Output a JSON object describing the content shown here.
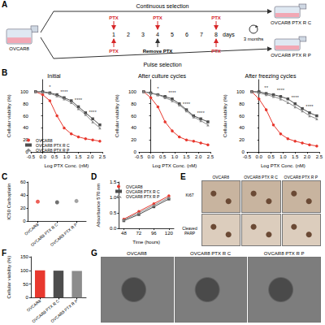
{
  "schematic": {
    "panel": "A",
    "source": "OVCAR8",
    "drug": "PTX",
    "continuous": "Continuous selection",
    "pulse": "Pulse selection",
    "days": [
      1,
      2,
      3,
      4,
      5,
      6,
      7,
      8
    ],
    "days_label": "days",
    "continuous_ptx_days": [
      1,
      4,
      8
    ],
    "pulse_ptx_days": [
      1,
      8
    ],
    "remove_day": 4,
    "remove": "Remove PTX",
    "duration": "3 months",
    "continuous_line": "OVCAR8 PTX R C",
    "pulse_line": "OVCAR8 PTX R P"
  },
  "chart_data": [
    {
      "panel": "B",
      "type": "line",
      "title": "Initial",
      "x_label": "Log PTX Conc. (nM)",
      "y_label": "Cellular viability (%)",
      "x": [
        -0.3,
        0,
        0.3,
        0.6,
        0.9,
        1.2,
        1.5,
        1.8,
        2.1,
        2.4
      ],
      "series": [
        {
          "name": "OVCAR8",
          "color": "#e8382e",
          "marker": "circle",
          "values": [
            100,
            95,
            85,
            60,
            40,
            30,
            25,
            22,
            20,
            18
          ]
        },
        {
          "name": "OVCAR8 PTX R C",
          "color": "#4d4d4d",
          "marker": "square",
          "values": [
            100,
            100,
            98,
            95,
            90,
            85,
            75,
            65,
            55,
            45
          ]
        },
        {
          "name": "OVCAR8 PTX R P",
          "color": "#8c8c8c",
          "marker": "triangle",
          "values": [
            100,
            99,
            97,
            93,
            88,
            82,
            72,
            62,
            50,
            40
          ]
        }
      ],
      "xlim": [
        -0.5,
        2.5
      ],
      "xticks": [
        -0.5,
        {
          "value": 0,
          "label": "0.0"
        },
        0.5,
        {
          "value": 1,
          "label": "1.0"
        },
        1.5,
        {
          "value": 2,
          "label": "2.0"
        },
        2.5
      ],
      "ylim": [
        0,
        120
      ],
      "yticks": [
        0,
        20,
        40,
        60,
        80,
        100
      ],
      "grid": false,
      "legend": "bottom left",
      "annotations": [
        {
          "x": 0.3,
          "y": 108,
          "text": "*"
        },
        {
          "x": 0.9,
          "y": 100,
          "text": "****"
        },
        {
          "x": 1.5,
          "y": 86,
          "text": "****"
        },
        {
          "x": 2.1,
          "y": 66,
          "text": "****"
        }
      ]
    },
    {
      "type": "line",
      "title": "After culture cycles",
      "x_label": "Log PTX Conc. (nM)",
      "y_label": "Cellular viability (%)",
      "x": [
        -0.3,
        0,
        0.3,
        0.6,
        0.9,
        1.2,
        1.5,
        1.8,
        2.1,
        2.4
      ],
      "series": [
        {
          "name": "OVCAR8",
          "color": "#e8382e",
          "marker": "circle",
          "values": [
            100,
            90,
            75,
            50,
            35,
            25,
            20,
            18,
            15,
            12
          ]
        },
        {
          "name": "OVCAR8 PTX R C",
          "color": "#4d4d4d",
          "marker": "square",
          "values": [
            100,
            98,
            95,
            92,
            88,
            80,
            70,
            60,
            55,
            50
          ]
        },
        {
          "name": "OVCAR8 PTX R P",
          "color": "#8c8c8c",
          "marker": "triangle",
          "values": [
            100,
            97,
            95,
            90,
            85,
            78,
            68,
            58,
            52,
            45
          ]
        }
      ],
      "xlim": [
        -0.5,
        2.5
      ],
      "xticks": [
        -0.5,
        {
          "value": 0,
          "label": "0.0"
        },
        0.5,
        {
          "value": 1,
          "label": "1.0"
        },
        1.5,
        {
          "value": 2,
          "label": "2.0"
        },
        2.5
      ],
      "ylim": [
        0,
        120
      ],
      "yticks": [
        0,
        20,
        40,
        60,
        80,
        100
      ],
      "grid": false,
      "annotations": [
        {
          "x": 0.3,
          "y": 105,
          "text": "*"
        },
        {
          "x": 0.9,
          "y": 98,
          "text": "****"
        },
        {
          "x": 1.5,
          "y": 80,
          "text": "****"
        },
        {
          "x": 2.1,
          "y": 65,
          "text": "****"
        }
      ]
    },
    {
      "type": "line",
      "title": "After freezing cycles",
      "x_label": "Log PTX Conc. (nM)",
      "y_label": "Cellular viability (%)",
      "x": [
        -0.3,
        0,
        0.3,
        0.6,
        0.9,
        1.2,
        1.5,
        1.8,
        2.1,
        2.4
      ],
      "series": [
        {
          "name": "OVCAR8",
          "color": "#e8382e",
          "marker": "circle",
          "values": [
            100,
            88,
            70,
            45,
            30,
            22,
            18,
            15,
            12,
            10
          ]
        },
        {
          "name": "OVCAR8 PTX R C",
          "color": "#4d4d4d",
          "marker": "square",
          "values": [
            100,
            100,
            97,
            95,
            92,
            88,
            80,
            72,
            65,
            60
          ]
        },
        {
          "name": "OVCAR8 PTX R P",
          "color": "#8c8c8c",
          "marker": "triangle",
          "values": [
            100,
            98,
            95,
            92,
            88,
            82,
            75,
            68,
            60,
            55
          ]
        }
      ],
      "xlim": [
        -0.5,
        2.5
      ],
      "xticks": [
        -0.5,
        {
          "value": 0,
          "label": "0.0"
        },
        0.5,
        {
          "value": 1,
          "label": "1.0"
        },
        1.5,
        {
          "value": 2,
          "label": "2.0"
        },
        2.5
      ],
      "ylim": [
        0,
        120
      ],
      "yticks": [
        0,
        20,
        40,
        60,
        80,
        100
      ],
      "grid": false,
      "annotations": [
        {
          "x": 0.3,
          "y": 107,
          "text": "**"
        },
        {
          "x": 0.9,
          "y": 102,
          "text": "****"
        },
        {
          "x": 1.5,
          "y": 90,
          "text": "****"
        },
        {
          "x": 2.1,
          "y": 75,
          "text": "****"
        }
      ]
    },
    {
      "panel": "C",
      "type": "scatter",
      "y_label": "IC50 Carboplatin",
      "categories": [
        "OVCAR8",
        "OVCAR8 PTX R C",
        "OVCAR8 PTX R P"
      ],
      "values": [
        30,
        29,
        31
      ],
      "colors": [
        "#e8382e",
        "#4d4d4d",
        "#8c8c8c"
      ],
      "marker": "circle",
      "ylim": [
        0,
        60
      ],
      "yticks": [
        0,
        20,
        40,
        60
      ],
      "grid": false
    },
    {
      "panel": "D",
      "type": "line",
      "x_label": "Time (hours)",
      "y_label": "Absorbance 570 nm",
      "x": [
        48,
        72,
        96,
        120
      ],
      "series": [
        {
          "name": "OVCAR8",
          "color": "#e8382e",
          "marker": "circle",
          "values": [
            0.3,
            0.55,
            0.8,
            1.05
          ]
        },
        {
          "name": "OVCAR8 PTX R C",
          "color": "#4d4d4d",
          "marker": "square",
          "values": [
            0.25,
            0.45,
            0.7,
            0.95
          ]
        },
        {
          "name": "OVCAR8 PTX R P",
          "color": "#8c8c8c",
          "marker": "triangle",
          "values": [
            0.28,
            0.5,
            0.75,
            1.0
          ]
        }
      ],
      "xlim": [
        40,
        128
      ],
      "xticks": [
        48,
        72,
        96,
        120
      ],
      "ylim": [
        0,
        1.5
      ],
      "yticks": [
        {
          "value": 0,
          "label": "0.0"
        },
        0.5,
        {
          "value": 1,
          "label": "1.0"
        },
        1.5
      ],
      "grid": false,
      "legend": "top left"
    },
    {
      "panel": "F",
      "type": "bar",
      "y_label": "Cellular viability (%)",
      "categories": [
        "OVCAR8",
        "OVCAR8 PTX R C",
        "OVCAR8 PTX R P"
      ],
      "values": [
        100,
        99,
        98
      ],
      "colors": [
        "#e8382e",
        "#4d4d4d",
        "#8c8c8c"
      ],
      "ylim": [
        0,
        150
      ],
      "yticks": [
        0,
        50,
        100,
        150
      ],
      "grid": false
    }
  ],
  "images": [
    {
      "panel": "E",
      "columns": [
        "OVCAR8",
        "OVCAR8 PTX R C",
        "OVCAR8 PTX R P"
      ],
      "rows": [
        "Ki67",
        "Cleaved PARP"
      ]
    },
    {
      "panel": "G",
      "columns": [
        "OVCAR8",
        "OVCAR8 PTX R C",
        "OVCAR8 PTX R P"
      ]
    }
  ]
}
